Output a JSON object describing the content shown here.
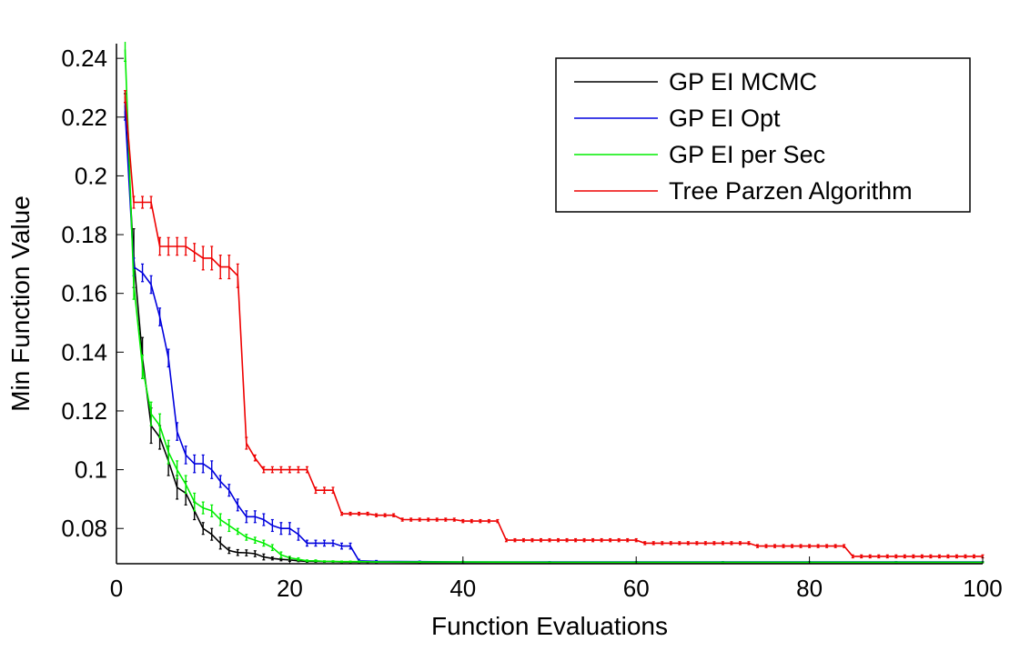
{
  "chart_data": {
    "type": "line",
    "title": "",
    "xlabel": "Function Evaluations",
    "ylabel": "Min Function Value",
    "xlim": [
      0,
      100
    ],
    "ylim": [
      0.068,
      0.245
    ],
    "xticks": [
      0,
      20,
      40,
      60,
      80,
      100
    ],
    "xtick_labels": [
      "0",
      "20",
      "40",
      "60",
      "80",
      "100"
    ],
    "yticks": [
      0.08,
      0.1,
      0.12,
      0.14,
      0.16,
      0.18,
      0.2,
      0.22,
      0.24
    ],
    "ytick_labels": [
      "0.08",
      "0.1",
      "0.12",
      "0.14",
      "0.16",
      "0.18",
      "0.2",
      "0.22",
      "0.24"
    ],
    "grid": false,
    "legend_position": "top-right",
    "series": [
      {
        "name": "GP EI MCMC",
        "color": "#000000",
        "x": [
          1,
          2,
          3,
          4,
          5,
          6,
          7,
          8,
          9,
          10,
          11,
          12,
          13,
          14,
          15,
          16,
          17,
          18,
          19,
          20,
          21,
          22,
          23,
          24,
          25,
          26,
          27,
          28,
          29,
          30,
          35,
          40,
          50,
          60,
          70,
          80,
          90,
          100
        ],
        "y": [
          0.224,
          0.172,
          0.138,
          0.115,
          0.111,
          0.103,
          0.094,
          0.092,
          0.086,
          0.08,
          0.078,
          0.075,
          0.0725,
          0.0718,
          0.0717,
          0.0714,
          0.0703,
          0.0698,
          0.0695,
          0.0693,
          0.069,
          0.0688,
          0.0688,
          0.0687,
          0.0687,
          0.0686,
          0.0686,
          0.0686,
          0.0686,
          0.0686,
          0.0685,
          0.0685,
          0.0685,
          0.0685,
          0.0685,
          0.0685,
          0.0685,
          0.0685
        ],
        "err": [
          0.004,
          0.01,
          0.007,
          0.006,
          0.004,
          0.005,
          0.004,
          0.004,
          0.003,
          0.002,
          0.002,
          0.002,
          0.001,
          0.001,
          0.001,
          0.001,
          0.001,
          0.0005,
          0.0005,
          0.0005,
          0.0003,
          0.0003,
          0.0003,
          0.0002,
          0.0002,
          0.0002,
          0.0002,
          0.0002,
          0.0002,
          0.0002,
          0.0001,
          0.0001,
          0.0001,
          0.0001,
          0.0001,
          0.0001,
          0.0001,
          0.0001
        ]
      },
      {
        "name": "GP EI Opt",
        "color": "#0000dd",
        "x": [
          1,
          2,
          3,
          4,
          5,
          6,
          7,
          8,
          9,
          10,
          11,
          12,
          13,
          14,
          15,
          16,
          17,
          18,
          19,
          20,
          21,
          22,
          23,
          24,
          25,
          26,
          27,
          28,
          30,
          35,
          40,
          50,
          60,
          70,
          80,
          90,
          100
        ],
        "y": [
          0.222,
          0.169,
          0.167,
          0.163,
          0.152,
          0.138,
          0.113,
          0.105,
          0.102,
          0.102,
          0.1,
          0.096,
          0.093,
          0.088,
          0.084,
          0.084,
          0.083,
          0.081,
          0.08,
          0.08,
          0.078,
          0.075,
          0.075,
          0.075,
          0.075,
          0.074,
          0.074,
          0.069,
          0.0688,
          0.0687,
          0.0686,
          0.0686,
          0.0686,
          0.0686,
          0.0686,
          0.0686,
          0.0686
        ],
        "err": [
          0.003,
          0.003,
          0.003,
          0.003,
          0.003,
          0.003,
          0.003,
          0.003,
          0.003,
          0.003,
          0.003,
          0.002,
          0.002,
          0.002,
          0.002,
          0.002,
          0.002,
          0.002,
          0.002,
          0.002,
          0.002,
          0.001,
          0.001,
          0.001,
          0.001,
          0.001,
          0.001,
          0.0005,
          0.0003,
          0.0002,
          0.0002,
          0.0001,
          0.0001,
          0.0001,
          0.0001,
          0.0001,
          0.0001
        ]
      },
      {
        "name": "GP EI per Sec",
        "color": "#00ee00",
        "x": [
          1,
          2,
          3,
          4,
          5,
          6,
          7,
          8,
          9,
          10,
          11,
          12,
          13,
          14,
          15,
          16,
          17,
          18,
          19,
          20,
          21,
          22,
          23,
          24,
          25,
          26,
          27,
          28,
          30,
          35,
          40,
          50,
          60,
          70,
          80,
          90,
          100
        ],
        "y": [
          0.243,
          0.163,
          0.135,
          0.119,
          0.115,
          0.106,
          0.1,
          0.095,
          0.089,
          0.087,
          0.086,
          0.083,
          0.081,
          0.079,
          0.077,
          0.076,
          0.075,
          0.0735,
          0.071,
          0.07,
          0.0695,
          0.069,
          0.069,
          0.0688,
          0.0688,
          0.0687,
          0.0687,
          0.0687,
          0.0686,
          0.0686,
          0.0686,
          0.0685,
          0.0685,
          0.0685,
          0.0685,
          0.0685,
          0.0685
        ],
        "err": [
          0.004,
          0.005,
          0.004,
          0.004,
          0.004,
          0.004,
          0.003,
          0.003,
          0.003,
          0.002,
          0.002,
          0.002,
          0.002,
          0.001,
          0.001,
          0.001,
          0.001,
          0.001,
          0.001,
          0.0005,
          0.0005,
          0.0003,
          0.0003,
          0.0002,
          0.0002,
          0.0002,
          0.0002,
          0.0002,
          0.0001,
          0.0001,
          0.0001,
          0.0001,
          0.0001,
          0.0001,
          0.0001,
          0.0001,
          0.0001
        ]
      },
      {
        "name": "Tree Parzen Algorithm",
        "color": "#ee0000",
        "x": [
          1,
          2,
          3,
          4,
          5,
          6,
          7,
          8,
          9,
          10,
          11,
          12,
          13,
          14,
          15,
          16,
          17,
          18,
          19,
          20,
          21,
          22,
          23,
          24,
          25,
          26,
          27,
          28,
          29,
          30,
          31,
          32,
          33,
          34,
          35,
          36,
          37,
          38,
          39,
          40,
          41,
          42,
          43,
          44,
          45,
          46,
          47,
          48,
          49,
          50,
          51,
          52,
          53,
          54,
          55,
          56,
          57,
          58,
          59,
          60,
          61,
          62,
          63,
          64,
          65,
          66,
          67,
          68,
          69,
          70,
          71,
          72,
          73,
          74,
          75,
          76,
          77,
          78,
          79,
          80,
          81,
          82,
          83,
          84,
          85,
          86,
          87,
          88,
          89,
          90,
          91,
          92,
          93,
          94,
          95,
          96,
          97,
          98,
          99,
          100
        ],
        "y": [
          0.227,
          0.191,
          0.191,
          0.191,
          0.176,
          0.176,
          0.176,
          0.176,
          0.174,
          0.172,
          0.172,
          0.169,
          0.169,
          0.166,
          0.109,
          0.104,
          0.1,
          0.1,
          0.1,
          0.1,
          0.1,
          0.1,
          0.093,
          0.093,
          0.093,
          0.085,
          0.085,
          0.085,
          0.085,
          0.0845,
          0.0845,
          0.0845,
          0.083,
          0.083,
          0.083,
          0.083,
          0.083,
          0.083,
          0.083,
          0.0825,
          0.0825,
          0.0825,
          0.0825,
          0.0825,
          0.076,
          0.076,
          0.076,
          0.076,
          0.076,
          0.076,
          0.076,
          0.076,
          0.076,
          0.076,
          0.076,
          0.076,
          0.076,
          0.076,
          0.076,
          0.076,
          0.075,
          0.075,
          0.075,
          0.075,
          0.075,
          0.075,
          0.075,
          0.075,
          0.075,
          0.075,
          0.075,
          0.075,
          0.075,
          0.074,
          0.074,
          0.074,
          0.074,
          0.074,
          0.074,
          0.074,
          0.074,
          0.074,
          0.074,
          0.074,
          0.0705,
          0.0705,
          0.0705,
          0.0705,
          0.0705,
          0.0705,
          0.0705,
          0.0705,
          0.0705,
          0.0705,
          0.0705,
          0.0705,
          0.0705,
          0.0705,
          0.0705,
          0.0705
        ],
        "err": [
          0.002,
          0.002,
          0.002,
          0.002,
          0.003,
          0.003,
          0.003,
          0.003,
          0.003,
          0.004,
          0.004,
          0.004,
          0.004,
          0.004,
          0.002,
          0.001,
          0.001,
          0.001,
          0.001,
          0.001,
          0.001,
          0.001,
          0.001,
          0.001,
          0.001,
          0.0005,
          0.0005,
          0.0005,
          0.0005,
          0.0005,
          0.0005,
          0.0005,
          0.0005,
          0.0005,
          0.0005,
          0.0005,
          0.0005,
          0.0005,
          0.0005,
          0.0005,
          0.0005,
          0.0005,
          0.0005,
          0.0005,
          0.0005,
          0.0005,
          0.0005,
          0.0005,
          0.0005,
          0.0005,
          0.0005,
          0.0005,
          0.0005,
          0.0005,
          0.0005,
          0.0005,
          0.0005,
          0.0005,
          0.0005,
          0.0005,
          0.0005,
          0.0005,
          0.0005,
          0.0005,
          0.0005,
          0.0005,
          0.0005,
          0.0005,
          0.0005,
          0.0005,
          0.0005,
          0.0005,
          0.0005,
          0.0005,
          0.0005,
          0.0005,
          0.0005,
          0.0005,
          0.0005,
          0.0005,
          0.0005,
          0.0005,
          0.0005,
          0.0005,
          0.0005,
          0.0005,
          0.0005,
          0.0005,
          0.0005,
          0.0005,
          0.0005,
          0.0005,
          0.0005,
          0.0005,
          0.0005,
          0.0005,
          0.0005,
          0.0005,
          0.0005,
          0.0005
        ]
      }
    ]
  }
}
